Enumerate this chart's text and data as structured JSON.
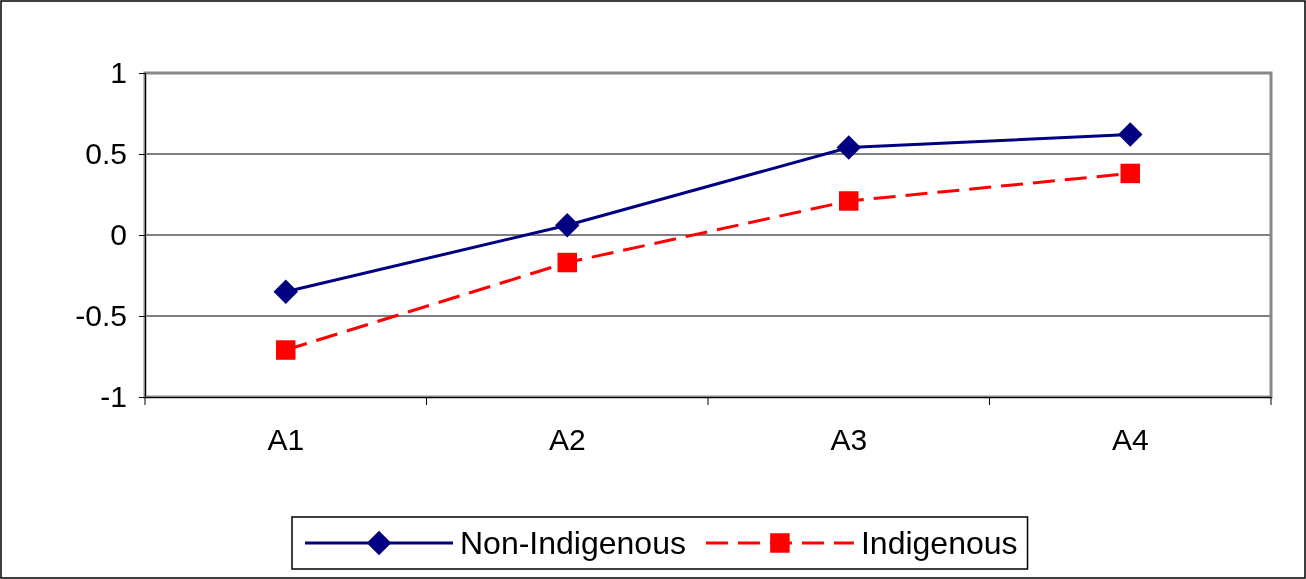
{
  "chart_data": {
    "type": "line",
    "categories": [
      "A1",
      "A2",
      "A3",
      "A4"
    ],
    "series": [
      {
        "name": "Non-Indigenous",
        "color": "#000080",
        "values": [
          -0.35,
          0.06,
          0.54,
          0.62
        ],
        "marker": "diamond",
        "line_style": "solid"
      },
      {
        "name": "Indigenous",
        "color": "#ff0000",
        "values": [
          -0.71,
          -0.17,
          0.21,
          0.38
        ],
        "marker": "square",
        "line_style": "dashed"
      }
    ],
    "ylim": [
      -1,
      1
    ],
    "yticks": [
      -1,
      -0.5,
      0,
      0.5,
      1
    ],
    "grid": "y",
    "legend": "bottom"
  }
}
